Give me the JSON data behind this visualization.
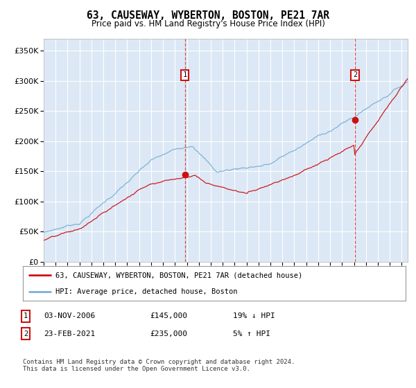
{
  "title": "63, CAUSEWAY, WYBERTON, BOSTON, PE21 7AR",
  "subtitle": "Price paid vs. HM Land Registry's House Price Index (HPI)",
  "hpi_label": "HPI: Average price, detached house, Boston",
  "price_label": "63, CAUSEWAY, WYBERTON, BOSTON, PE21 7AR (detached house)",
  "sale1_date": "03-NOV-2006",
  "sale1_price": 145000,
  "sale1_hpi_diff": "19% ↓ HPI",
  "sale2_date": "23-FEB-2021",
  "sale2_price": 235000,
  "sale2_hpi_diff": "5% ↑ HPI",
  "ylim": [
    0,
    370000
  ],
  "hpi_color": "#7ab0d4",
  "price_color": "#cc1111",
  "plot_bg": "#dce8f5",
  "grid_color": "#ffffff",
  "footer": "Contains HM Land Registry data © Crown copyright and database right 2024.\nThis data is licensed under the Open Government Licence v3.0."
}
